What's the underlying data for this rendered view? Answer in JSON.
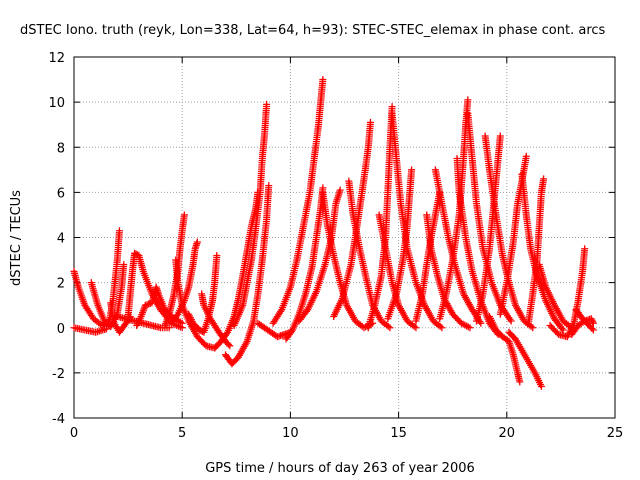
{
  "chart_data": {
    "type": "scatter",
    "title": "dSTEC Iono. truth (reyk, Lon=338, Lat=64, h=93): STEC-STEC_elemax in phase cont. arcs",
    "xlabel": "GPS time / hours of day 263 of year 2006",
    "ylabel": "dSTEC  / TECUs",
    "xlim": [
      0,
      25
    ],
    "ylim": [
      -4,
      12
    ],
    "xticks": [
      "0",
      "5",
      "10",
      "15",
      "20",
      "25"
    ],
    "yticks": [
      "-4",
      "-2",
      "0",
      "2",
      "4",
      "6",
      "8",
      "10",
      "12"
    ],
    "grid": true,
    "marker": "+",
    "color": "#ff0000",
    "arcs": [
      [
        [
          0.0,
          2.5
        ],
        [
          0.2,
          1.8
        ],
        [
          0.5,
          1.0
        ],
        [
          0.9,
          0.4
        ],
        [
          1.3,
          0.1
        ],
        [
          1.6,
          0.3
        ]
      ],
      [
        [
          0.0,
          0.0
        ],
        [
          0.5,
          -0.1
        ],
        [
          1.0,
          -0.2
        ],
        [
          1.5,
          -0.05
        ]
      ],
      [
        [
          0.8,
          2.0
        ],
        [
          1.1,
          1.0
        ],
        [
          1.4,
          0.3
        ],
        [
          1.7,
          0.05
        ],
        [
          2.0,
          0.6
        ],
        [
          2.2,
          1.8
        ],
        [
          2.3,
          2.8
        ]
      ],
      [
        [
          1.6,
          0.1
        ],
        [
          1.8,
          1.2
        ],
        [
          2.0,
          3.0
        ],
        [
          2.1,
          4.3
        ]
      ],
      [
        [
          1.7,
          1.1
        ],
        [
          1.8,
          0.3
        ],
        [
          2.1,
          -0.2
        ],
        [
          2.4,
          0.2
        ],
        [
          2.6,
          0.5
        ]
      ],
      [
        [
          2.5,
          0.5
        ],
        [
          2.6,
          1.5
        ],
        [
          2.7,
          2.5
        ],
        [
          2.8,
          3.3
        ],
        [
          3.0,
          3.2
        ],
        [
          3.2,
          2.5
        ],
        [
          3.6,
          1.5
        ],
        [
          4.0,
          0.8
        ],
        [
          4.5,
          0.2
        ],
        [
          5.0,
          0.0
        ]
      ],
      [
        [
          2.9,
          0.1
        ],
        [
          3.1,
          0.5
        ],
        [
          3.3,
          1.0
        ],
        [
          3.6,
          1.1
        ],
        [
          3.8,
          1.8
        ],
        [
          3.9,
          1.5
        ],
        [
          4.2,
          0.8
        ],
        [
          4.5,
          0.5
        ],
        [
          5.0,
          0.2
        ]
      ],
      [
        [
          2.0,
          0.5
        ],
        [
          2.4,
          0.4
        ],
        [
          2.8,
          0.3
        ],
        [
          3.2,
          0.2
        ],
        [
          3.6,
          0.1
        ],
        [
          4.0,
          0.0
        ],
        [
          4.4,
          0.0
        ]
      ],
      [
        [
          4.2,
          0.1
        ],
        [
          4.4,
          0.6
        ],
        [
          4.6,
          1.4
        ],
        [
          4.8,
          2.5
        ],
        [
          4.9,
          3.5
        ],
        [
          5.0,
          4.3
        ],
        [
          5.1,
          5.0
        ]
      ],
      [
        [
          4.5,
          0.2
        ],
        [
          4.8,
          0.6
        ],
        [
          5.1,
          1.2
        ],
        [
          5.3,
          1.8
        ],
        [
          5.5,
          2.8
        ],
        [
          5.6,
          3.5
        ],
        [
          5.7,
          3.8
        ]
      ],
      [
        [
          4.7,
          3.0
        ],
        [
          4.8,
          2.0
        ],
        [
          5.0,
          1.0
        ],
        [
          5.3,
          0.3
        ],
        [
          5.7,
          -0.4
        ],
        [
          6.1,
          -0.8
        ],
        [
          6.5,
          -0.9
        ]
      ],
      [
        [
          5.3,
          0.6
        ],
        [
          5.5,
          0.2
        ],
        [
          5.8,
          -0.1
        ],
        [
          6.0,
          -0.2
        ],
        [
          6.2,
          0.4
        ],
        [
          6.4,
          1.2
        ],
        [
          6.5,
          2.0
        ],
        [
          6.6,
          3.2
        ]
      ],
      [
        [
          5.9,
          1.5
        ],
        [
          6.0,
          1.0
        ],
        [
          6.3,
          0.4
        ],
        [
          6.7,
          -0.2
        ],
        [
          7.0,
          -0.6
        ],
        [
          7.2,
          -0.8
        ]
      ],
      [
        [
          6.5,
          -0.9
        ],
        [
          6.8,
          -0.6
        ],
        [
          7.1,
          -0.2
        ],
        [
          7.4,
          0.5
        ],
        [
          7.6,
          1.3
        ],
        [
          7.8,
          2.3
        ],
        [
          8.0,
          3.4
        ],
        [
          8.2,
          4.5
        ],
        [
          8.4,
          5.3
        ],
        [
          8.5,
          6.0
        ]
      ],
      [
        [
          7.0,
          -1.2
        ],
        [
          7.3,
          -1.6
        ],
        [
          7.6,
          -1.3
        ],
        [
          8.0,
          -0.6
        ],
        [
          8.3,
          0.3
        ],
        [
          8.5,
          1.5
        ],
        [
          8.7,
          3.0
        ],
        [
          8.9,
          4.8
        ],
        [
          9.0,
          6.3
        ]
      ],
      [
        [
          7.4,
          0.1
        ],
        [
          7.8,
          1.0
        ],
        [
          8.0,
          2.0
        ],
        [
          8.2,
          3.0
        ],
        [
          8.4,
          4.4
        ],
        [
          8.6,
          6.0
        ],
        [
          8.7,
          7.5
        ],
        [
          8.8,
          8.5
        ],
        [
          8.9,
          9.9
        ]
      ],
      [
        [
          8.5,
          0.2
        ],
        [
          8.8,
          0.0
        ],
        [
          9.1,
          -0.2
        ],
        [
          9.4,
          -0.4
        ],
        [
          9.7,
          -0.3
        ],
        [
          10.0,
          -0.2
        ]
      ],
      [
        [
          9.2,
          0.2
        ],
        [
          9.6,
          0.8
        ],
        [
          10.0,
          1.8
        ],
        [
          10.3,
          3.0
        ],
        [
          10.6,
          4.5
        ],
        [
          10.9,
          6.0
        ],
        [
          11.1,
          7.5
        ],
        [
          11.3,
          9.0
        ],
        [
          11.4,
          10.0
        ],
        [
          11.5,
          11.0
        ]
      ],
      [
        [
          9.8,
          -0.5
        ],
        [
          10.1,
          -0.1
        ],
        [
          10.4,
          0.6
        ],
        [
          10.7,
          1.5
        ],
        [
          11.0,
          2.7
        ],
        [
          11.2,
          4.0
        ],
        [
          11.4,
          5.3
        ],
        [
          11.5,
          6.2
        ]
      ],
      [
        [
          10.4,
          0.3
        ],
        [
          10.8,
          0.8
        ],
        [
          11.2,
          1.6
        ],
        [
          11.6,
          2.8
        ],
        [
          11.9,
          4.0
        ],
        [
          12.1,
          5.5
        ],
        [
          12.3,
          6.1
        ]
      ],
      [
        [
          11.5,
          6.0
        ],
        [
          11.7,
          4.6
        ],
        [
          12.0,
          3.2
        ],
        [
          12.3,
          2.0
        ],
        [
          12.6,
          1.0
        ],
        [
          13.0,
          0.3
        ],
        [
          13.4,
          0.0
        ],
        [
          13.8,
          0.2
        ]
      ],
      [
        [
          12.0,
          0.5
        ],
        [
          12.4,
          1.3
        ],
        [
          12.8,
          2.8
        ],
        [
          13.0,
          4.0
        ],
        [
          13.2,
          5.3
        ],
        [
          13.4,
          6.6
        ],
        [
          13.6,
          8.0
        ],
        [
          13.7,
          9.1
        ]
      ],
      [
        [
          12.7,
          6.5
        ],
        [
          12.9,
          5.0
        ],
        [
          13.2,
          3.5
        ],
        [
          13.5,
          2.2
        ],
        [
          13.8,
          1.0
        ],
        [
          14.2,
          0.3
        ],
        [
          14.6,
          0.0
        ]
      ],
      [
        [
          13.6,
          0.0
        ],
        [
          13.9,
          1.0
        ],
        [
          14.2,
          2.3
        ],
        [
          14.4,
          4.0
        ],
        [
          14.5,
          6.0
        ],
        [
          14.6,
          8.0
        ],
        [
          14.7,
          9.8
        ]
      ],
      [
        [
          14.1,
          5.0
        ],
        [
          14.4,
          3.5
        ],
        [
          14.7,
          2.0
        ],
        [
          15.0,
          1.0
        ],
        [
          15.4,
          0.3
        ],
        [
          15.8,
          0.0
        ]
      ],
      [
        [
          14.7,
          9.5
        ],
        [
          14.9,
          7.5
        ],
        [
          15.1,
          5.5
        ],
        [
          15.4,
          3.5
        ],
        [
          15.8,
          2.0
        ],
        [
          16.2,
          1.0
        ],
        [
          16.6,
          0.3
        ],
        [
          17.0,
          0.0
        ]
      ],
      [
        [
          14.5,
          0.4
        ],
        [
          14.9,
          1.5
        ],
        [
          15.2,
          3.0
        ],
        [
          15.4,
          4.5
        ],
        [
          15.5,
          5.8
        ],
        [
          15.6,
          7.0
        ]
      ],
      [
        [
          15.8,
          0.3
        ],
        [
          16.1,
          1.5
        ],
        [
          16.3,
          2.8
        ],
        [
          16.5,
          4.0
        ],
        [
          16.7,
          5.0
        ],
        [
          16.9,
          6.0
        ]
      ],
      [
        [
          16.3,
          5.0
        ],
        [
          16.5,
          3.5
        ],
        [
          16.8,
          2.3
        ],
        [
          17.1,
          1.3
        ],
        [
          17.5,
          0.6
        ],
        [
          17.9,
          0.2
        ],
        [
          18.3,
          0.0
        ]
      ],
      [
        [
          16.7,
          7.0
        ],
        [
          17.0,
          5.5
        ],
        [
          17.3,
          4.0
        ],
        [
          17.6,
          2.8
        ],
        [
          18.0,
          1.5
        ],
        [
          18.4,
          0.8
        ],
        [
          18.8,
          0.2
        ]
      ],
      [
        [
          16.9,
          0.4
        ],
        [
          17.2,
          1.5
        ],
        [
          17.5,
          3.0
        ],
        [
          17.8,
          5.0
        ],
        [
          18.0,
          7.5
        ],
        [
          18.1,
          9.0
        ],
        [
          18.2,
          10.1
        ]
      ],
      [
        [
          18.2,
          9.5
        ],
        [
          18.4,
          7.5
        ],
        [
          18.6,
          5.5
        ],
        [
          18.9,
          3.5
        ],
        [
          19.3,
          2.0
        ],
        [
          19.7,
          1.0
        ],
        [
          20.2,
          0.3
        ]
      ],
      [
        [
          17.7,
          7.5
        ],
        [
          17.8,
          6.0
        ],
        [
          18.1,
          4.0
        ],
        [
          18.4,
          2.5
        ],
        [
          18.8,
          1.2
        ],
        [
          19.2,
          0.2
        ],
        [
          19.6,
          -0.3
        ]
      ],
      [
        [
          18.6,
          0.3
        ],
        [
          18.9,
          1.5
        ],
        [
          19.2,
          3.5
        ],
        [
          19.4,
          5.5
        ],
        [
          19.6,
          7.5
        ],
        [
          19.7,
          8.5
        ]
      ],
      [
        [
          19.0,
          8.5
        ],
        [
          19.2,
          7.0
        ],
        [
          19.5,
          5.0
        ],
        [
          19.8,
          3.2
        ],
        [
          20.1,
          2.0
        ],
        [
          20.4,
          1.0
        ],
        [
          20.8,
          0.3
        ],
        [
          21.2,
          0.0
        ]
      ],
      [
        [
          19.2,
          0.5
        ],
        [
          19.5,
          -0.1
        ],
        [
          19.8,
          -0.4
        ],
        [
          20.1,
          -0.6
        ],
        [
          20.3,
          -1.2
        ],
        [
          20.5,
          -2.0
        ],
        [
          20.6,
          -2.4
        ]
      ],
      [
        [
          19.7,
          0.6
        ],
        [
          20.0,
          2.0
        ],
        [
          20.3,
          3.8
        ],
        [
          20.5,
          5.5
        ],
        [
          20.7,
          6.5
        ],
        [
          20.9,
          7.6
        ]
      ],
      [
        [
          20.1,
          -0.2
        ],
        [
          20.4,
          -0.5
        ],
        [
          20.7,
          -1.0
        ],
        [
          21.0,
          -1.5
        ],
        [
          21.3,
          -2.0
        ],
        [
          21.6,
          -2.6
        ]
      ],
      [
        [
          20.7,
          6.8
        ],
        [
          20.9,
          5.0
        ],
        [
          21.1,
          3.5
        ],
        [
          21.4,
          2.3
        ],
        [
          21.8,
          1.2
        ],
        [
          22.2,
          0.4
        ],
        [
          22.6,
          -0.1
        ]
      ],
      [
        [
          21.0,
          0.2
        ],
        [
          21.2,
          1.5
        ],
        [
          21.4,
          3.0
        ],
        [
          21.5,
          4.5
        ],
        [
          21.6,
          6.0
        ],
        [
          21.7,
          6.6
        ]
      ],
      [
        [
          21.5,
          2.8
        ],
        [
          21.8,
          1.8
        ],
        [
          22.2,
          1.0
        ],
        [
          22.6,
          0.3
        ],
        [
          23.0,
          0.0
        ]
      ],
      [
        [
          22.0,
          0.1
        ],
        [
          22.4,
          -0.3
        ],
        [
          22.8,
          -0.4
        ],
        [
          23.1,
          0.2
        ],
        [
          23.3,
          1.2
        ],
        [
          23.5,
          2.5
        ],
        [
          23.6,
          3.5
        ]
      ],
      [
        [
          23.0,
          -0.3
        ],
        [
          23.3,
          0.1
        ],
        [
          23.6,
          0.3
        ],
        [
          23.9,
          0.4
        ],
        [
          24.0,
          0.2
        ]
      ],
      [
        [
          23.2,
          0.8
        ],
        [
          23.5,
          0.4
        ],
        [
          23.8,
          0.1
        ],
        [
          24.0,
          -0.1
        ]
      ]
    ]
  }
}
